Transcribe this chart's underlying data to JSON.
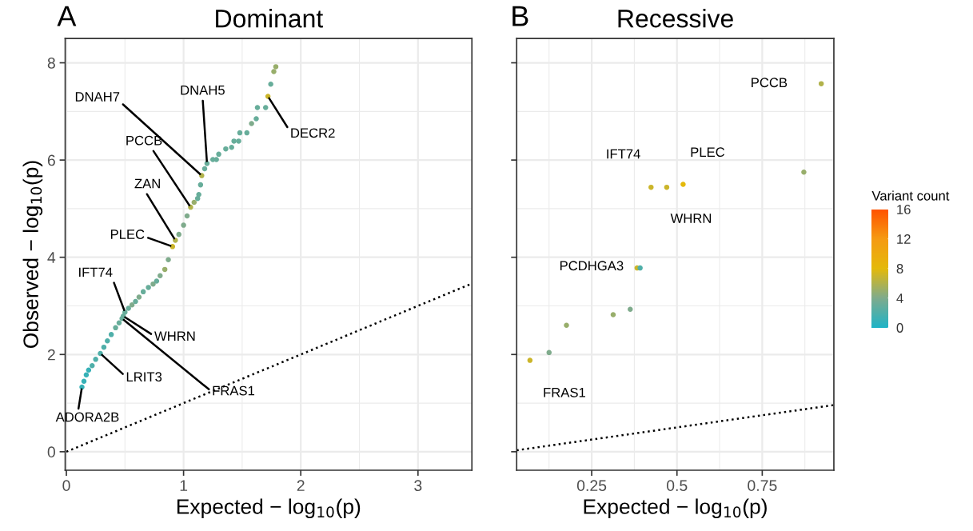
{
  "chart_data": [
    {
      "type": "scatter",
      "title": "Dominant",
      "xlabel": "Expected − log$_{10}$(p)",
      "ylabel": "Observed − log$_{10}$(p)",
      "xlim": [
        -0.01,
        3.46
      ],
      "xticks": [
        0,
        1,
        2,
        3
      ],
      "ylim": [
        -0.38,
        8.5
      ],
      "yticks": [
        0,
        2,
        4,
        6,
        8
      ],
      "grid": true,
      "marker": "circle",
      "series": [
        {
          "x": [
            0.133,
            0.15,
            0.17,
            0.19,
            0.22,
            0.25,
            0.29,
            0.32,
            0.35,
            0.383,
            0.42,
            0.45,
            0.475,
            0.485,
            0.5,
            0.53,
            0.56,
            0.59,
            0.62,
            0.656,
            0.7,
            0.74,
            0.77,
            0.8,
            0.84,
            0.87,
            0.906,
            0.93,
            0.96,
            1.0,
            1.03,
            1.06,
            1.09,
            1.12,
            1.13,
            1.145,
            1.155,
            1.18,
            1.2,
            1.25,
            1.28,
            1.3,
            1.36,
            1.41,
            1.43,
            1.47,
            1.48,
            1.54,
            1.58,
            1.62,
            1.63,
            1.7,
            1.72,
            1.744,
            1.77,
            1.787
          ],
          "values": [
            1.33,
            1.45,
            1.58,
            1.68,
            1.77,
            1.9,
            2.02,
            2.15,
            2.28,
            2.41,
            2.55,
            2.65,
            2.74,
            2.79,
            2.87,
            2.95,
            3.02,
            3.09,
            3.18,
            3.29,
            3.38,
            3.45,
            3.51,
            3.62,
            3.75,
            3.95,
            4.22,
            4.35,
            4.47,
            4.66,
            4.85,
            5.03,
            5.13,
            5.21,
            5.29,
            5.49,
            5.68,
            5.82,
            5.93,
            6.01,
            6.01,
            6.12,
            6.23,
            6.26,
            6.39,
            6.39,
            6.56,
            6.56,
            6.75,
            6.85,
            7.08,
            7.08,
            7.31,
            7.56,
            7.82,
            7.92
          ],
          "colors": [
            "#37b1b7",
            "#37b1b7",
            "#37b1b7",
            "#37b1b7",
            "#4fafa9",
            "#4fafa9",
            "#4fafa9",
            "#4fafa9",
            "#4fafa9",
            "#4fafa9",
            "#67ad9a",
            "#67ad9a",
            "#67ad9a",
            "#67ad9a",
            "#67ad9a",
            "#67ad9a",
            "#7fab8c",
            "#67ad9a",
            "#7fab8c",
            "#67ad9a",
            "#67ad9a",
            "#7fab8c",
            "#67ad9a",
            "#7fab8c",
            "#98ae6b",
            "#7fab8c",
            "#cbb52a",
            "#b1b24b",
            "#7fab8c",
            "#7fab8c",
            "#7fab8c",
            "#b1b24b",
            "#98ae6b",
            "#67ad9a",
            "#67ad9a",
            "#67ad9a",
            "#b1b24b",
            "#67ad9a",
            "#67ad9a",
            "#67ad9a",
            "#67ad9a",
            "#67ad9a",
            "#67ad9a",
            "#67ad9a",
            "#67ad9a",
            "#67ad9a",
            "#67ad9a",
            "#67ad9a",
            "#7fab8c",
            "#67ad9a",
            "#67ad9a",
            "#67ad9a",
            "#cbb52a",
            "#67ad9a",
            "#98ae6b",
            "#98ae6b"
          ]
        },
        {
          "type": "line",
          "x": [
            0,
            3.46
          ],
          "values": [
            0,
            3.46
          ],
          "color": "#000000",
          "line_style": "dotted",
          "marker": "none"
        }
      ],
      "annotations": [
        "A",
        {
          "text": "DNAH7",
          "x": 1.155,
          "y": 5.68
        },
        {
          "text": "DNAH5",
          "x": 1.2,
          "y": 5.93
        },
        {
          "text": "DECR2",
          "x": 1.72,
          "y": 7.31
        },
        {
          "text": "PCCB",
          "x": 1.06,
          "y": 5.03
        },
        {
          "text": "ZAN",
          "x": 0.93,
          "y": 4.35
        },
        {
          "text": "PLEC",
          "x": 0.906,
          "y": 4.22
        },
        {
          "text": "IFT74",
          "x": 0.5,
          "y": 2.87
        },
        {
          "text": "WHRN",
          "x": 0.485,
          "y": 2.79
        },
        {
          "text": "FRAS1",
          "x": 0.475,
          "y": 2.74
        },
        {
          "text": "LRIT3",
          "x": 0.29,
          "y": 2.02
        },
        {
          "text": "ADORA2B",
          "x": 0.133,
          "y": 1.33
        }
      ]
    },
    {
      "type": "scatter",
      "title": "Recessive",
      "xlabel": "Expected − log$_{10}$(p)",
      "xlim": [
        0.03,
        0.96
      ],
      "xticks": [
        0.25,
        0.5,
        0.75
      ],
      "ylim": [
        -0.38,
        8.5
      ],
      "yticks": [
        0,
        2,
        4,
        6,
        8
      ],
      "tick_labels": "x",
      "grid": true,
      "marker": "circle",
      "clabel": "Variant count",
      "clim": [
        0,
        16
      ],
      "cticks": [
        0,
        4,
        8,
        12,
        16
      ],
      "series": [
        {
          "x": [
            0.069,
            0.125,
            0.176,
            0.313,
            0.363,
            0.383,
            0.392,
            0.424,
            0.47,
            0.518,
            0.872,
            0.923
          ],
          "values": [
            1.88,
            2.04,
            2.6,
            2.82,
            2.93,
            3.78,
            3.78,
            5.44,
            5.44,
            5.5,
            5.75,
            7.57
          ],
          "colors": [
            "#cbb52a",
            "#7fab8c",
            "#98ae6b",
            "#98ae6b",
            "#7fab8c",
            "#cbb52a",
            "#4fafa9",
            "#cbb52a",
            "#cbb52a",
            "#e4b90a",
            "#98ae6b",
            "#b1b24b"
          ]
        },
        {
          "type": "line",
          "x": [
            0.03,
            0.96
          ],
          "values": [
            0.03,
            0.96
          ],
          "color": "#000000",
          "line_style": "dotted",
          "marker": "none"
        }
      ],
      "annotations": [
        "B",
        {
          "text": "FRAS1",
          "x": 0.069,
          "y": 1.88
        },
        {
          "text": "PCDHGA3",
          "x": 0.383,
          "y": 3.78
        },
        {
          "text": "IFT74",
          "x": 0.424,
          "y": 5.44
        },
        {
          "text": "WHRN",
          "x": 0.47,
          "y": 5.44
        },
        {
          "text": "PLEC",
          "x": 0.518,
          "y": 5.5
        },
        {
          "text": "PCCB",
          "x": 0.923,
          "y": 7.57
        }
      ]
    }
  ]
}
